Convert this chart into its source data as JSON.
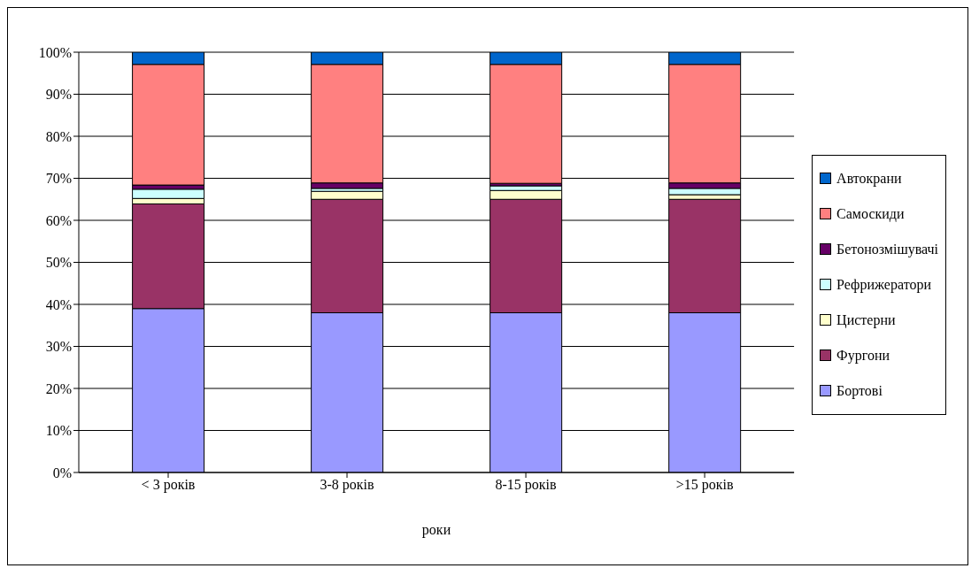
{
  "chart_data": {
    "type": "bar",
    "stacked": true,
    "categories": [
      "< 3 років",
      "3-8 років",
      "8-15 років",
      ">15 років"
    ],
    "xlabel": "роки",
    "ylim": [
      0,
      100
    ],
    "yticks": [
      {
        "value": 0,
        "label": "0%"
      },
      {
        "value": 10,
        "label": "10%"
      },
      {
        "value": 20,
        "label": "20%"
      },
      {
        "value": 30,
        "label": "30%"
      },
      {
        "value": 40,
        "label": "40%"
      },
      {
        "value": 50,
        "label": "50%"
      },
      {
        "value": 60,
        "label": "60%"
      },
      {
        "value": 70,
        "label": "70%"
      },
      {
        "value": 80,
        "label": "80%"
      },
      {
        "value": 90,
        "label": "90%"
      },
      {
        "value": 100,
        "label": "100%"
      }
    ],
    "grid": "y",
    "legend": "right",
    "series": [
      {
        "name": "Бортові",
        "color": "#9999ff",
        "values": [
          39.0,
          38.0,
          38.0,
          38.0
        ]
      },
      {
        "name": "Фургони",
        "color": "#993366",
        "values": [
          24.9,
          27.0,
          27.0,
          27.0
        ]
      },
      {
        "name": "Цистерни",
        "color": "#ffffcc",
        "values": [
          1.3,
          1.9,
          2.1,
          1.1
        ]
      },
      {
        "name": "Рефрижератори",
        "color": "#ccffff",
        "values": [
          2.2,
          0.7,
          1.1,
          1.5
        ]
      },
      {
        "name": "Бетонозмішувачі",
        "color": "#660066",
        "values": [
          1.0,
          1.3,
          0.6,
          1.3
        ]
      },
      {
        "name": "Самоскиди",
        "color": "#ff8080",
        "values": [
          28.7,
          28.2,
          28.3,
          28.2
        ]
      },
      {
        "name": "Автокрани",
        "color": "#0066cc",
        "values": [
          2.9,
          2.9,
          2.9,
          2.9
        ]
      }
    ]
  }
}
